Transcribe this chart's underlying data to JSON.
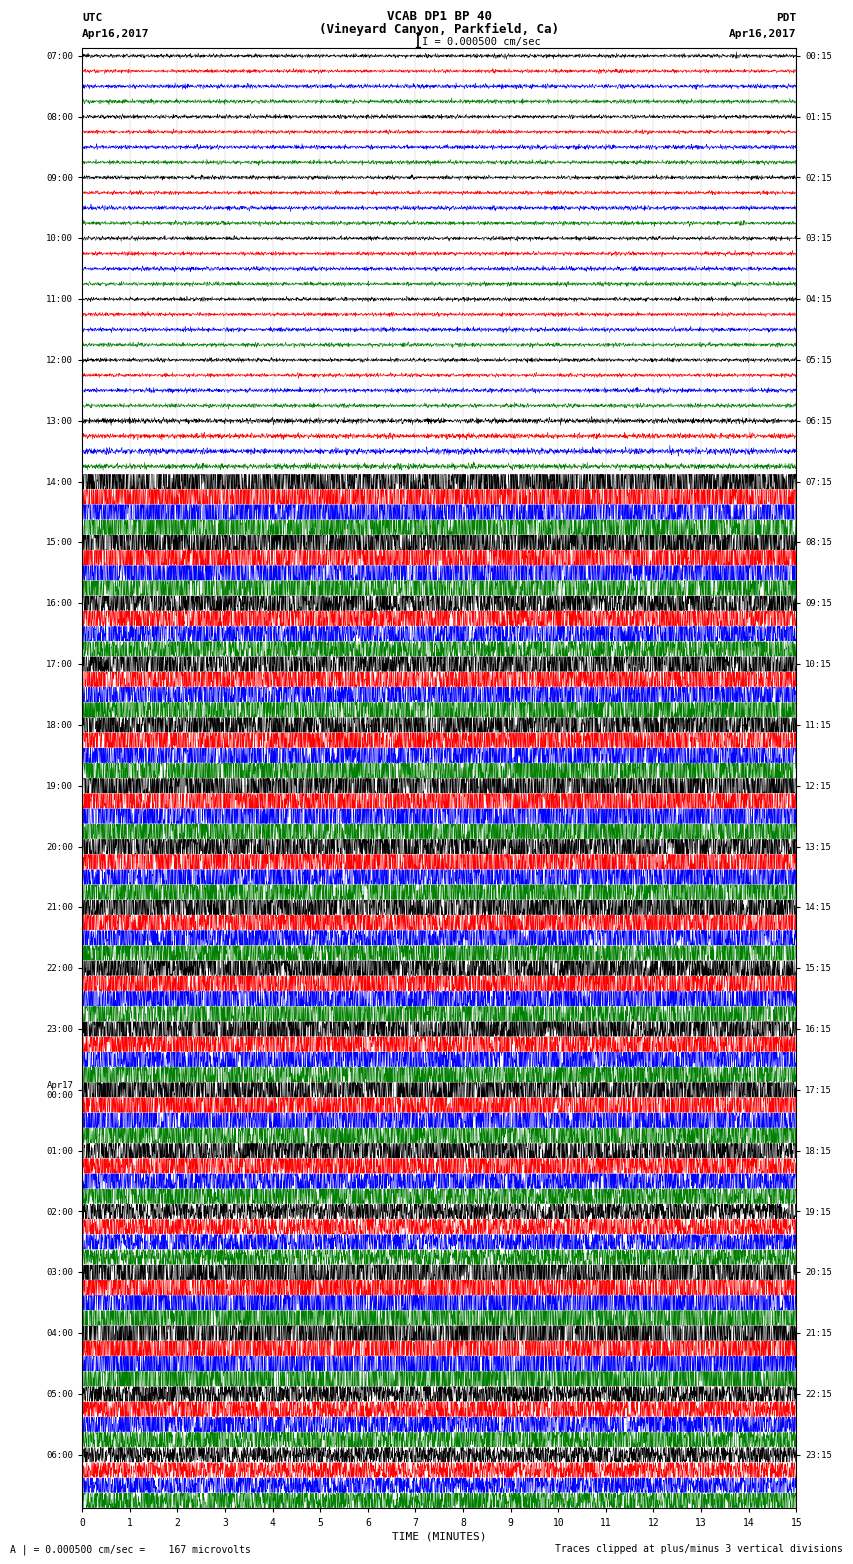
{
  "title_line1": "VCAB DP1 BP 40",
  "title_line2": "(Vineyard Canyon, Parkfield, Ca)",
  "scale_label": "I = 0.000500 cm/sec",
  "left_label_top": "UTC",
  "left_label_date": "Apr16,2017",
  "right_label_top": "PDT",
  "right_label_date": "Apr16,2017",
  "bottom_xlabel": "TIME (MINUTES)",
  "bottom_note_left": "A | = 0.000500 cm/sec =    167 microvolts",
  "bottom_note_right": "Traces clipped at plus/minus 3 vertical divisions",
  "utc_times": [
    "07:00",
    "08:00",
    "09:00",
    "10:00",
    "11:00",
    "12:00",
    "13:00",
    "14:00",
    "15:00",
    "16:00",
    "17:00",
    "18:00",
    "19:00",
    "20:00",
    "21:00",
    "22:00",
    "23:00",
    "Apr17\n00:00",
    "01:00",
    "02:00",
    "03:00",
    "04:00",
    "05:00",
    "06:00"
  ],
  "pdt_times": [
    "00:15",
    "01:15",
    "02:15",
    "03:15",
    "04:15",
    "05:15",
    "06:15",
    "07:15",
    "08:15",
    "09:15",
    "10:15",
    "11:15",
    "12:15",
    "13:15",
    "14:15",
    "15:15",
    "16:15",
    "17:15",
    "18:15",
    "19:15",
    "20:15",
    "21:15",
    "22:15",
    "23:15"
  ],
  "trace_colors": [
    "black",
    "red",
    "blue",
    "green"
  ],
  "n_rows": 24,
  "traces_per_row": 4,
  "n_minutes": 15,
  "fig_width": 8.5,
  "fig_height": 16.13,
  "bg_color": "white",
  "grid_color": "#888888",
  "base_noise": 0.08,
  "active_noise": 0.18,
  "clip_level": 0.45
}
